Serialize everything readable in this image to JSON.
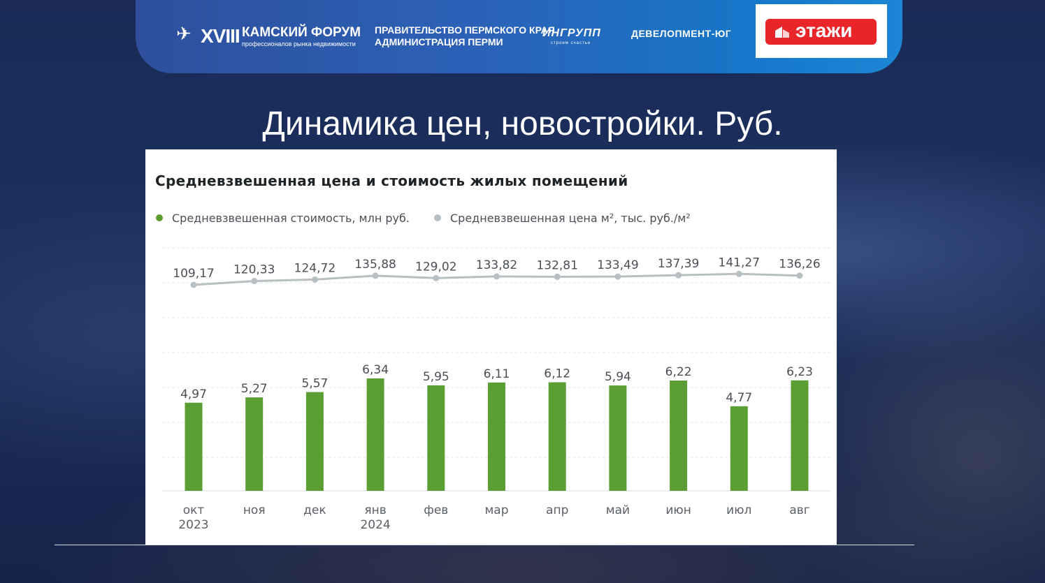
{
  "header": {
    "forum_mark": "✈",
    "forum_number": "XVIII",
    "forum_title": "КАМСКИЙ ФОРУМ",
    "forum_subtitle": "профессионалов рынка недвижимости",
    "gov_line1": "ПРАВИТЕЛЬСТВО ПЕРМСКОГО КРАЯ",
    "gov_line2": "АДМИНИСТРАЦИЯ ПЕРМИ",
    "ingrupp": "ИНГРУПП",
    "ingrupp_sub": "строим счастье",
    "developer": "ДЕВЕЛОПМЕНТ-ЮГ",
    "etazhi": "этажи",
    "etazhi_color": "#e8262a"
  },
  "slide_title": "Динамика цен, новостройки. Руб.",
  "chart_data": {
    "type": "bar",
    "title": "Средневзвешенная цена и стоимость жилых помещений",
    "categories": [
      "окт",
      "ноя",
      "дек",
      "янв",
      "фев",
      "мар",
      "апр",
      "май",
      "июн",
      "июл",
      "авг"
    ],
    "category_years": [
      "2023",
      "",
      "",
      "2024",
      "",
      "",
      "",
      "",
      "",
      "",
      ""
    ],
    "series": [
      {
        "name": "Средневзвешенная стоимость, млн руб.",
        "type": "bar",
        "color": "#5a9e34",
        "values": [
          4.97,
          5.27,
          5.57,
          6.34,
          5.95,
          6.11,
          6.12,
          5.94,
          6.22,
          4.77,
          6.23
        ],
        "labels": [
          "4,97",
          "5,27",
          "5,57",
          "6,34",
          "5,95",
          "6,11",
          "6,12",
          "5,94",
          "6,22",
          "4,77",
          "6,23"
        ]
      },
      {
        "name": "Средневзвешенная цена м², тыс. руб./м²",
        "type": "line",
        "color": "#b8bfc3",
        "values": [
          109.17,
          120.33,
          124.72,
          135.88,
          129.02,
          133.82,
          132.81,
          133.49,
          137.39,
          141.27,
          136.26
        ],
        "labels": [
          "109,17",
          "120,33",
          "124,72",
          "135,88",
          "129,02",
          "133,82",
          "132,81",
          "133,49",
          "137,39",
          "141,27",
          "136,26"
        ]
      }
    ],
    "legend_position": "top-left",
    "grid": true
  }
}
